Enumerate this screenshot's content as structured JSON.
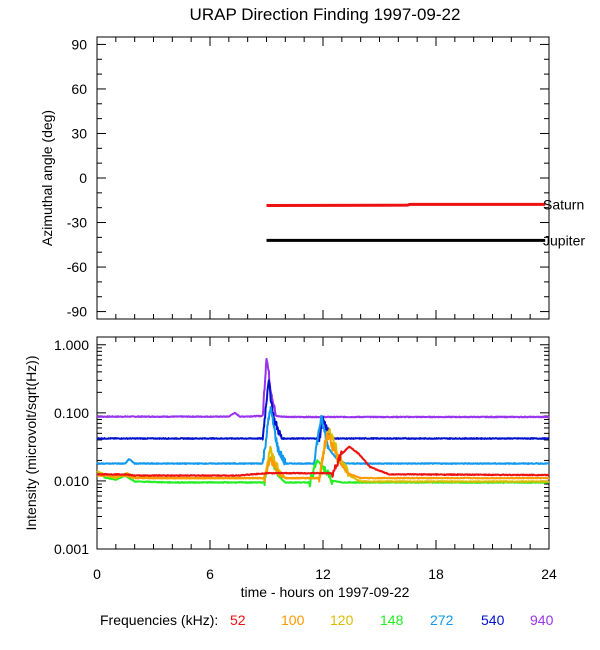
{
  "title": "URAP Direction Finding  1997-09-22",
  "colors": {
    "f52": "#ee1111",
    "f100": "#ff9900",
    "f120": "#ddbb00",
    "f148": "#22ee22",
    "f272": "#1199ee",
    "f540": "#0011cc",
    "f940": "#9933ee",
    "saturn": "#ee1111",
    "jupiter": "#000000"
  },
  "legend": {
    "label": "Frequencies (kHz):",
    "items": [
      "52",
      "100",
      "120",
      "148",
      "272",
      "540",
      "940"
    ]
  },
  "chart_data": [
    {
      "type": "line",
      "title": "URAP Direction Finding  1997-09-22",
      "ylabel": "Azimuthal angle (deg)",
      "xlim": [
        0,
        24
      ],
      "ylim": [
        -95,
        95
      ],
      "yticks": [
        "90",
        "60",
        "30",
        "0",
        "-30",
        "-60",
        "-90"
      ],
      "ytick_values": [
        90,
        60,
        30,
        0,
        -30,
        -60,
        -90
      ],
      "series": [
        {
          "name": "Saturn",
          "color": "#ee1111",
          "x": [
            9.0,
            16.5,
            16.6,
            23.8
          ],
          "y": [
            -18.5,
            -18.3,
            -17.8,
            -17.8
          ]
        },
        {
          "name": "Jupiter",
          "color": "#000000",
          "x": [
            9.0,
            23.8
          ],
          "y": [
            -42,
            -42
          ]
        }
      ]
    },
    {
      "type": "scatter",
      "xlabel": "time - hours on 1997-09-22",
      "ylabel": "Intensity (microvolt/sqrt(Hz))",
      "xlim": [
        0,
        24
      ],
      "ylim": [
        0.001,
        1.3
      ],
      "yscale": "log",
      "xticks": [
        "0",
        "6",
        "12",
        "18",
        "24"
      ],
      "xtick_values": [
        0,
        6,
        12,
        18,
        24
      ],
      "yticks": [
        "1.000",
        "0.100",
        "0.010",
        "0.001"
      ],
      "ytick_values": [
        1,
        0.1,
        0.01,
        0.001
      ],
      "series": [
        {
          "name": "940",
          "color": "#9933ee",
          "x": [
            0,
            7.0,
            7.3,
            7.6,
            8.8,
            9.0,
            9.2,
            9.5,
            9.8,
            10.5,
            24
          ],
          "y": [
            0.088,
            0.088,
            0.1,
            0.088,
            0.09,
            0.7,
            0.25,
            0.09,
            0.088,
            0.087,
            0.087
          ]
        },
        {
          "name": "540",
          "color": "#0011cc",
          "x": [
            0,
            8.8,
            9.1,
            9.4,
            9.8,
            11.8,
            12.0,
            12.3,
            12.6,
            24
          ],
          "y": [
            0.042,
            0.042,
            0.3,
            0.08,
            0.042,
            0.042,
            0.08,
            0.05,
            0.042,
            0.042
          ]
        },
        {
          "name": "272",
          "color": "#1199ee",
          "x": [
            0,
            1.5,
            1.7,
            2.0,
            8.8,
            9.2,
            9.6,
            10.0,
            11.5,
            11.9,
            12.3,
            12.8,
            13.2,
            24
          ],
          "y": [
            0.018,
            0.018,
            0.021,
            0.018,
            0.018,
            0.12,
            0.03,
            0.018,
            0.018,
            0.085,
            0.03,
            0.02,
            0.018,
            0.018
          ]
        },
        {
          "name": "148",
          "color": "#22ee22",
          "x": [
            0,
            0.5,
            1.0,
            1.5,
            2.0,
            4.0,
            8.9,
            9.2,
            9.6,
            10.0,
            11.3,
            11.7,
            12.0,
            12.5,
            13.0,
            24
          ],
          "y": [
            0.013,
            0.011,
            0.0105,
            0.012,
            0.0098,
            0.0095,
            0.0095,
            0.025,
            0.012,
            0.0095,
            0.0095,
            0.02,
            0.016,
            0.01,
            0.0095,
            0.0095
          ]
        },
        {
          "name": "120",
          "color": "#ddbb00",
          "x": [
            0,
            0.5,
            1.0,
            1.6,
            2.1,
            2.6,
            3.0,
            4.0,
            8.9,
            9.2,
            9.6,
            10.0,
            11.8,
            12.3,
            12.8,
            13.4,
            14.0,
            24
          ],
          "y": [
            0.014,
            0.012,
            0.011,
            0.013,
            0.011,
            0.012,
            0.011,
            0.011,
            0.011,
            0.03,
            0.015,
            0.011,
            0.011,
            0.06,
            0.025,
            0.012,
            0.0098,
            0.0098
          ]
        },
        {
          "name": "100",
          "color": "#ff9900",
          "x": [
            0,
            1.5,
            2.0,
            4.0,
            8.9,
            9.2,
            9.7,
            10.0,
            11.8,
            12.2,
            12.8,
            13.3,
            14.0,
            24
          ],
          "y": [
            0.012,
            0.012,
            0.011,
            0.011,
            0.011,
            0.022,
            0.012,
            0.011,
            0.011,
            0.05,
            0.02,
            0.013,
            0.011,
            0.011
          ]
        },
        {
          "name": "52",
          "color": "#ee1111",
          "x": [
            0,
            1.5,
            2.0,
            4.0,
            7.5,
            9.0,
            12.5,
            13.0,
            13.4,
            13.9,
            14.5,
            15.5,
            24
          ],
          "y": [
            0.0125,
            0.0125,
            0.012,
            0.012,
            0.012,
            0.013,
            0.013,
            0.025,
            0.032,
            0.025,
            0.016,
            0.0125,
            0.0122
          ]
        }
      ]
    }
  ]
}
